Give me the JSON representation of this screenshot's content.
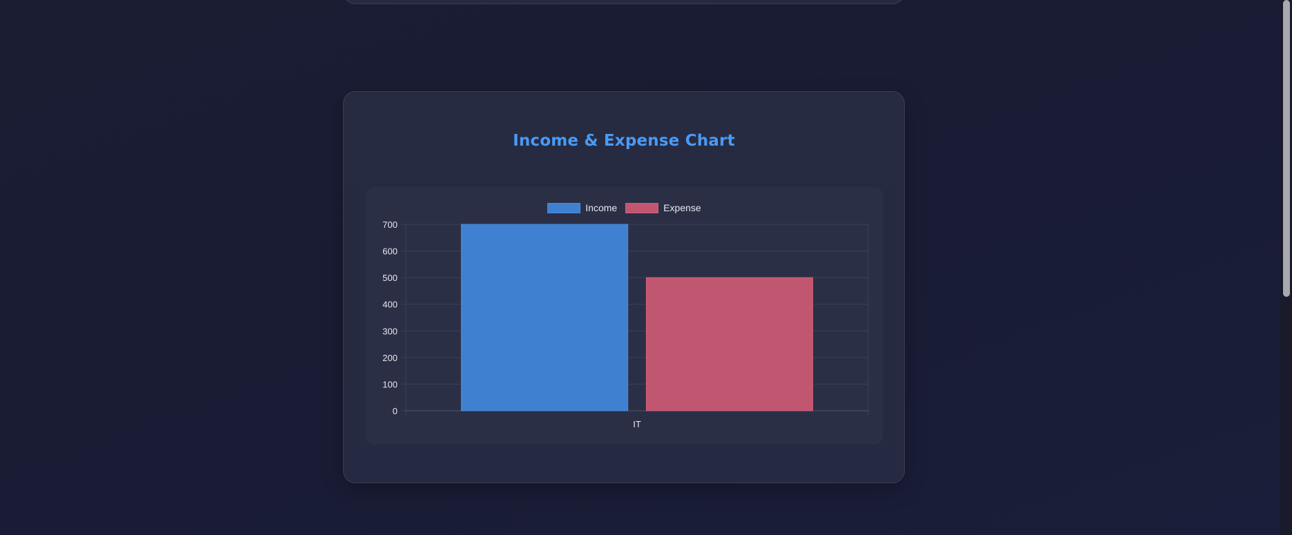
{
  "card": {
    "title": "Income & Expense Chart"
  },
  "colors": {
    "income_fill": "#3f80d0",
    "income_border": "#4a8fe0",
    "expense_fill": "#c0566f",
    "expense_border": "#d2627c",
    "title": "#4a9af5",
    "grid": "#3d4158",
    "tick_text": "#e6e8f0"
  },
  "chart_data": {
    "type": "bar",
    "categories": [
      "IT"
    ],
    "series": [
      {
        "name": "Income",
        "values": [
          700
        ]
      },
      {
        "name": "Expense",
        "values": [
          500
        ]
      }
    ],
    "yticks": [
      "0",
      "100",
      "200",
      "300",
      "400",
      "500",
      "600",
      "700"
    ],
    "ylim": [
      0,
      700
    ],
    "grid": true,
    "legend": "top-center"
  }
}
